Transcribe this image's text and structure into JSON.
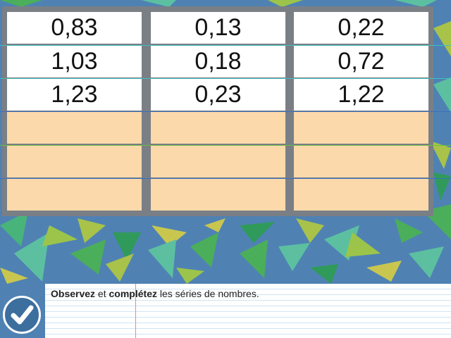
{
  "columns": [
    {
      "values": [
        "0,83",
        "1,03",
        "1,23"
      ],
      "blanks": 3
    },
    {
      "values": [
        "0,13",
        "0,18",
        "0,23"
      ],
      "blanks": 3
    },
    {
      "values": [
        "0,22",
        "0,72",
        "1,22"
      ],
      "blanks": 3
    }
  ],
  "instruction": {
    "word1": "Observez",
    "word2": " et ",
    "word3": "complétez",
    "word4": " les séries de nombres."
  },
  "colors": {
    "background": "#4f82b3",
    "blank_cell": "#fcd9ab",
    "filled_cell": "#ffffff",
    "panel": "#7a7f86"
  },
  "icons": {
    "validate": "check-icon"
  }
}
